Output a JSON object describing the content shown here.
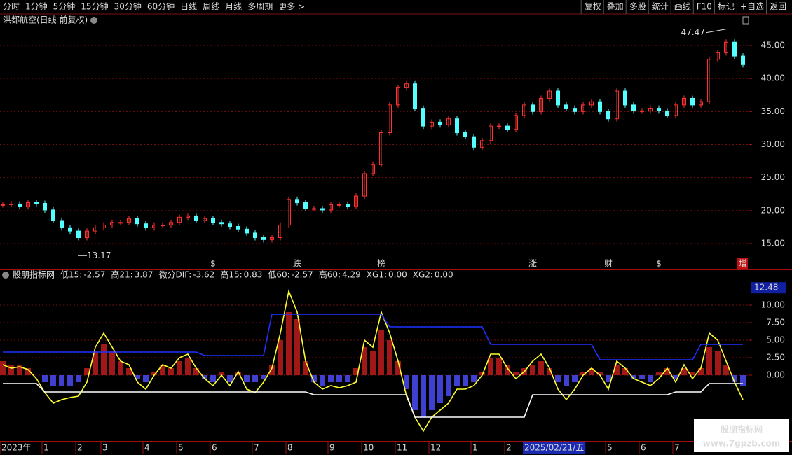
{
  "toolbar": {
    "periods": [
      "分时",
      "1分钟",
      "5分钟",
      "15分钟",
      "30分钟",
      "60分钟",
      "日线",
      "周线",
      "月线",
      "多周期",
      "更多 >"
    ],
    "active_period": "日线",
    "buttons": [
      "复权",
      "叠加",
      "多股",
      "统计",
      "画线",
      "F10",
      "标记",
      "+自选",
      "返回"
    ]
  },
  "chart_data": [
    {
      "type": "candlestick",
      "title": "洪都航空(日线 前复权)",
      "up_color": "#ff3232",
      "down_color": "#54ffff",
      "grid": true,
      "closes": [
        20.9,
        21,
        20.6,
        21.2,
        21.1,
        20.1,
        18.5,
        17.4,
        16.9,
        15.9,
        16.9,
        17.4,
        17.8,
        18.2,
        18.2,
        18.8,
        18,
        17.4,
        17.8,
        17.8,
        18.2,
        19,
        19.2,
        18.5,
        18.8,
        18.2,
        18,
        17.6,
        17.2,
        16.6,
        15.9,
        15.6,
        15.9,
        17.8,
        21.7,
        21.2,
        20.3,
        20.3,
        20.1,
        20.9,
        20.9,
        20.6,
        22.2,
        25.6,
        27,
        31.8,
        36,
        38.6,
        39.2,
        35.5,
        32.8,
        33.4,
        33,
        33.9,
        31.8,
        31.2,
        29.6,
        30.6,
        32.8,
        32.8,
        32.3,
        34.4,
        36,
        35,
        37,
        38.1,
        36,
        35.5,
        35,
        36,
        36.5,
        35,
        33.9,
        38.1,
        36,
        35.1,
        35.1,
        35.5,
        35.1,
        34.4,
        36,
        37,
        36,
        36.5,
        42.9,
        43.9,
        45.5,
        43.4,
        42.1
      ],
      "high_label": 47.47,
      "low_label": 13.17,
      "ylim": [
        11.08,
        47.86
      ],
      "yticks": [
        {
          "value": 15,
          "label": "15.00"
        },
        {
          "value": 20,
          "label": "20.00"
        },
        {
          "value": 25,
          "label": "25.00"
        },
        {
          "value": 30,
          "label": "30.00"
        },
        {
          "value": 35,
          "label": "35.00"
        },
        {
          "value": 40,
          "label": "40.00"
        },
        {
          "value": 45,
          "label": "45.00"
        }
      ],
      "events": [
        null,
        null,
        null,
        null,
        null,
        null,
        null,
        null,
        null,
        null,
        null,
        null,
        null,
        null,
        null,
        null,
        null,
        null,
        null,
        null,
        null,
        null,
        null,
        null,
        null,
        {
          "label": "$",
          "color": "#ff3030"
        },
        null,
        null,
        null,
        null,
        null,
        null,
        null,
        null,
        null,
        {
          "label": "跌",
          "color": "#30e030"
        },
        null,
        null,
        null,
        null,
        null,
        null,
        null,
        null,
        null,
        {
          "label": "榜",
          "color": "#ff9a30"
        },
        null,
        null,
        null,
        null,
        null,
        null,
        null,
        null,
        null,
        null,
        null,
        null,
        null,
        null,
        null,
        null,
        null,
        {
          "label": "涨",
          "color": "#ff3030"
        },
        null,
        null,
        null,
        null,
        null,
        null,
        null,
        null,
        {
          "label": "财",
          "color": "#6ab0ff"
        },
        null,
        null,
        null,
        null,
        null,
        {
          "label": "$",
          "color": "#ff3030"
        },
        null,
        null,
        null,
        null,
        null,
        null,
        null,
        null,
        null,
        {
          "label": "增",
          "color": "#ffffff"
        }
      ]
    },
    {
      "type": "indicator",
      "title": "股朋指标网",
      "current": 12.48,
      "legend": [
        {
          "name": "低15:",
          "value": -2.57,
          "color": "#7cf07c"
        },
        {
          "name": "高21:",
          "value": 3.87,
          "color": "#40e0e0"
        },
        {
          "name": "微分DIF:",
          "value": -3.62,
          "color": "#ffff40"
        },
        {
          "name": "高15:",
          "value": 0.83,
          "color": "#40e0c0"
        },
        {
          "name": "低60:",
          "value": -2.57,
          "color": "#ffffff"
        },
        {
          "name": "高60:",
          "value": 4.29,
          "color": "#3040ff"
        },
        {
          "name": "XG1:",
          "value": {
            "value": 0,
            "label": "0.00"
          },
          "color": "#ffffff"
        },
        {
          "name": "XG2:",
          "value": {
            "value": 0,
            "label": "0.00"
          },
          "color": "#ffff40"
        }
      ],
      "histogram": {
        "up_color": "#a01818",
        "down_color": "#4040d0",
        "values": [
          2,
          1.5,
          1.5,
          1,
          0,
          -1,
          -1.5,
          -1.5,
          -1.5,
          -1,
          1,
          3.5,
          4.5,
          3.5,
          2,
          1,
          -0.5,
          -1,
          0.5,
          1.5,
          1,
          2,
          2.5,
          1,
          -0.5,
          -1,
          0.5,
          -1,
          0.5,
          -1,
          -1,
          -0.5,
          1.5,
          5,
          9,
          8,
          2,
          -1,
          -1.5,
          -1,
          -1,
          -1,
          1,
          4,
          3.5,
          6.5,
          5,
          2,
          -2,
          -5,
          -6,
          -5,
          -4,
          -3,
          -1.5,
          -1.5,
          -1,
          0.5,
          2.5,
          2.5,
          1.5,
          0.5,
          1,
          1.5,
          2,
          1,
          -1,
          -1.5,
          -1,
          0.5,
          1,
          0.5,
          -1,
          1.5,
          1,
          -0.5,
          -0.5,
          -1,
          0.5,
          1,
          -0.5,
          1,
          0.5,
          1,
          4,
          3.5,
          1.5,
          -1,
          -1.5
        ]
      },
      "series": [
        {
          "color": "#ffff30",
          "values": [
            1.5,
            1,
            1.2,
            0.8,
            -0.5,
            -2.5,
            -4,
            -3.5,
            -3.2,
            -3,
            -1,
            4,
            6,
            4,
            2,
            1.5,
            -1,
            -2,
            0,
            1.5,
            1,
            2.5,
            3,
            1,
            -0.5,
            -1.5,
            0,
            -1.5,
            0.5,
            -2,
            -2.5,
            -1,
            1,
            6,
            12,
            9,
            2,
            -1,
            -2,
            -1.5,
            -1.8,
            -1.5,
            -1,
            5,
            4,
            9,
            6,
            2,
            -3,
            -6,
            -8,
            -6,
            -5,
            -4,
            -2,
            -2,
            -1.5,
            0,
            3,
            3,
            1,
            -0.5,
            0.5,
            2,
            3,
            1,
            -2,
            -3.5,
            -2,
            0,
            1,
            0,
            -2,
            2,
            1,
            -0.5,
            -1,
            -1.5,
            -0.5,
            1,
            -1,
            1.5,
            -0.5,
            1,
            6,
            5,
            2,
            -1,
            -3.5
          ]
        },
        {
          "color": "#2030ff",
          "values": [
            3.3,
            3.3,
            3.3,
            3.3,
            3.3,
            3.3,
            3.3,
            3.3,
            3.3,
            3.3,
            3.3,
            3.3,
            3.3,
            3.3,
            3.3,
            3.3,
            3.3,
            3.3,
            3.3,
            3.3,
            3.3,
            3.3,
            3.3,
            3.3,
            2.8,
            2.8,
            2.8,
            2.8,
            2.8,
            2.8,
            2.8,
            2.8,
            8.7,
            8.7,
            8.7,
            8.7,
            8.7,
            8.7,
            8.7,
            8.7,
            8.7,
            8.7,
            8.7,
            8.7,
            8.7,
            8.7,
            6.9,
            6.9,
            6.9,
            6.9,
            6.9,
            6.9,
            6.9,
            6.9,
            6.9,
            6.9,
            6.9,
            6.9,
            4.4,
            4.4,
            4.4,
            4.4,
            4.4,
            4.4,
            4.4,
            4.4,
            4.4,
            4.4,
            4.4,
            4.4,
            4.4,
            2.2,
            2.2,
            2.2,
            2.2,
            2.2,
            2.2,
            2.2,
            2.2,
            2.2,
            2.2,
            2.2,
            2.2,
            4.4,
            4.4,
            4.4,
            4.4,
            4.4,
            4.4
          ]
        },
        {
          "color": "#ffffff",
          "values": [
            -1.2,
            -1.2,
            -1.2,
            -1.2,
            -1.2,
            -2.4,
            -2.4,
            -2.4,
            -2.4,
            -2.4,
            -2.4,
            -2.4,
            -2.4,
            -2.4,
            -2.4,
            -2.4,
            -2.4,
            -2.4,
            -2.4,
            -2.4,
            -2.4,
            -2.4,
            -2.4,
            -2.4,
            -2.4,
            -2.4,
            -2.4,
            -2.4,
            -2.4,
            -2.4,
            -2.4,
            -2.4,
            -2.4,
            -2.4,
            -2.4,
            -2.4,
            -2.4,
            -2.8,
            -2.8,
            -2.8,
            -2.8,
            -2.8,
            -2.8,
            -2.8,
            -2.8,
            -2.8,
            -2.8,
            -2.8,
            -2.8,
            -6,
            -6,
            -6,
            -6,
            -6,
            -6,
            -6,
            -6,
            -6,
            -6,
            -6,
            -6,
            -6,
            -6,
            -2.8,
            -2.8,
            -2.8,
            -2.8,
            -2.8,
            -2.8,
            -2.8,
            -2.8,
            -2.8,
            -2.8,
            -2.8,
            -2.8,
            -2.8,
            -2.8,
            -2.8,
            -2.8,
            -2.8,
            -2.4,
            -2.4,
            -2.4,
            -2.4,
            -1.2,
            -1.2,
            -1.2,
            -1.2,
            -1.2
          ]
        }
      ],
      "ylim": [
        -9.4,
        13.6
      ],
      "yticks": [
        {
          "value": 0,
          "label": "0.00"
        },
        {
          "value": 2.5,
          "label": "2.50"
        },
        {
          "value": 5,
          "label": "5.00"
        },
        {
          "value": 7.5,
          "label": "7.50"
        },
        {
          "value": 10,
          "label": "10.00"
        }
      ],
      "categories": [
        "2023年",
        null,
        null,
        null,
        null,
        "1",
        null,
        null,
        null,
        "2",
        null,
        null,
        "3",
        null,
        null,
        null,
        null,
        "4",
        null,
        null,
        null,
        "5",
        null,
        null,
        null,
        "6",
        null,
        null,
        null,
        null,
        "7",
        null,
        null,
        null,
        "8",
        null,
        null,
        null,
        null,
        "9",
        null,
        null,
        null,
        "10",
        null,
        null,
        null,
        "11",
        null,
        null,
        null,
        "12",
        null,
        null,
        null,
        null,
        "1",
        null,
        null,
        null,
        "2",
        null,
        "2025/02/21/五",
        null,
        null,
        null,
        null,
        null,
        null,
        null,
        null,
        null,
        "5",
        null,
        null,
        null,
        "6",
        null,
        null,
        null,
        "7",
        null,
        null,
        null,
        null,
        null,
        null,
        null,
        null
      ],
      "highlight_category": "2025/02/21/五"
    }
  ],
  "watermark": {
    "title": "股朋指标网",
    "url": "www.7gpzb.com"
  }
}
